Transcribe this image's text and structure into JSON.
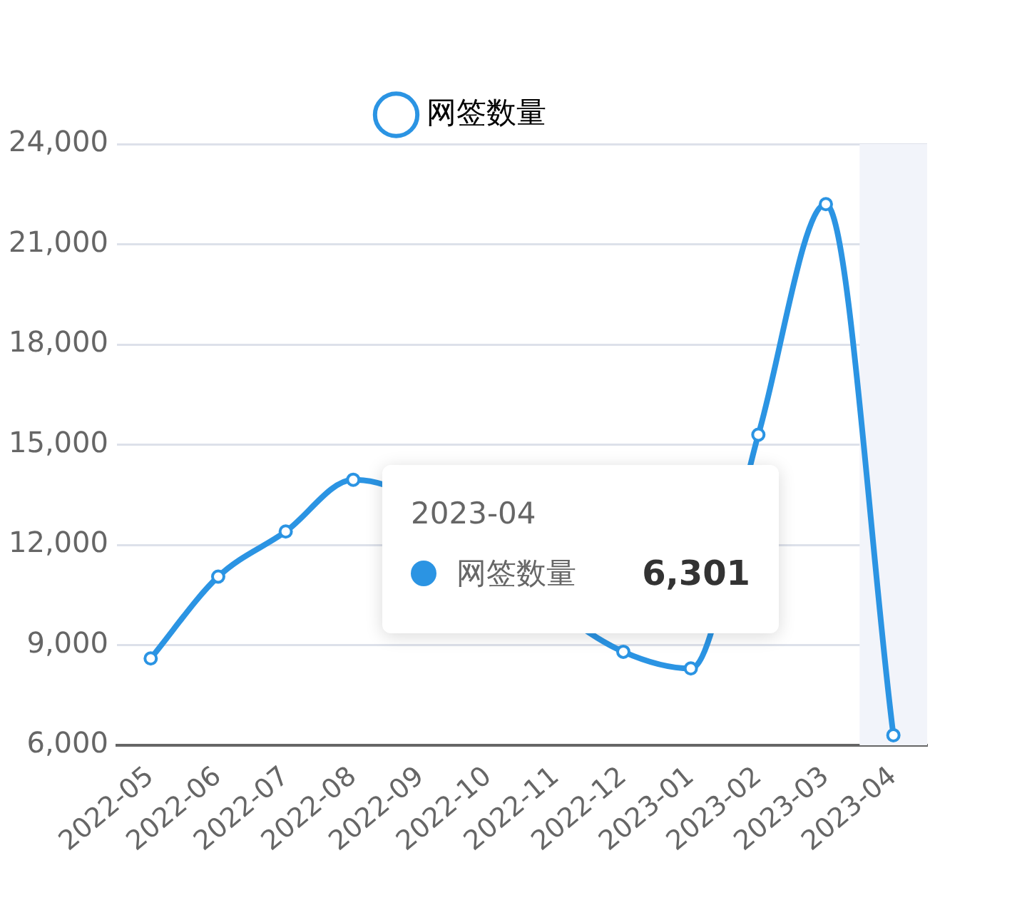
{
  "chart_data": {
    "type": "line",
    "categories": [
      "2022-05",
      "2022-06",
      "2022-07",
      "2022-08",
      "2022-09",
      "2022-10",
      "2022-11",
      "2022-12",
      "2023-01",
      "2023-02",
      "2023-03",
      "2023-04"
    ],
    "series": [
      {
        "name": "网签数量",
        "color": "#2b94e3",
        "values": [
          8600,
          11050,
          12400,
          13950,
          null,
          null,
          null,
          8800,
          8300,
          15300,
          22200,
          6301
        ]
      }
    ],
    "ylim": [
      6000,
      24000
    ],
    "yticks": [
      {
        "value": 6000,
        "label": "6,000"
      },
      {
        "value": 9000,
        "label": "9,000"
      },
      {
        "value": 12000,
        "label": "12,000"
      },
      {
        "value": 15000,
        "label": "15,000"
      },
      {
        "value": 18000,
        "label": "18,000"
      },
      {
        "value": 21000,
        "label": "21,000"
      },
      {
        "value": 24000,
        "label": "24,000"
      }
    ],
    "grid": "y",
    "legend": "top",
    "marker": "circle",
    "line_style": "solid",
    "bands": [
      {
        "axis": "x",
        "from": "2023-04",
        "to": "2023-04",
        "color": "#f2f4fa"
      }
    ],
    "annotations": [
      "2023-04",
      "网签数量",
      "6,301"
    ]
  }
}
